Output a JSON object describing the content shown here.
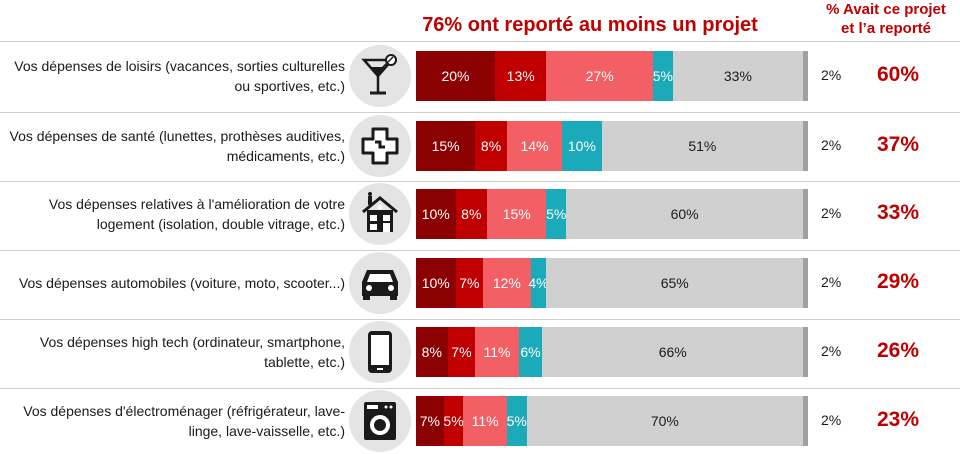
{
  "header": {
    "title": "76% ont reporté au moins un projet",
    "right_label_line1": "% Avait ce projet",
    "right_label_line2": "et l’a reporté"
  },
  "colors": [
    "#8b0000",
    "#c00000",
    "#f26066",
    "#1aaab9",
    "#d0d0d0"
  ],
  "chart_data": {
    "type": "bar",
    "orientation": "horizontal-stacked",
    "title": "76% ont reporté au moins un projet",
    "categories": [
      "Vos dépenses de loisirs (vacances, sorties culturelles ou sportives, etc.)",
      "Vos dépenses de santé (lunettes, prothèses auditives, médicaments, etc.)",
      "Vos dépenses relatives à l'amélioration de votre logement (isolation, double vitrage, etc.)",
      "Vos dépenses automobiles (voiture, moto, scooter...)",
      "Vos dépenses high tech (ordinateur, smartphone, tablette, etc.)",
      "Vos dépenses d'électroménager (réfrigérateur, lave-linge, lave-vaisselle, etc.)"
    ],
    "series": [
      {
        "values": [
          20,
          15,
          10,
          10,
          8,
          7
        ]
      },
      {
        "values": [
          13,
          8,
          8,
          7,
          7,
          5
        ]
      },
      {
        "values": [
          27,
          14,
          15,
          12,
          11,
          11
        ]
      },
      {
        "values": [
          5,
          10,
          5,
          4,
          6,
          5
        ]
      },
      {
        "values": [
          33,
          51,
          60,
          65,
          66,
          70
        ]
      },
      {
        "values": [
          2,
          2,
          2,
          2,
          2,
          2
        ]
      }
    ],
    "reported_share": [
      "60%",
      "37%",
      "33%",
      "29%",
      "26%",
      "23%"
    ]
  },
  "rows": [
    {
      "label_line1": "Vos dépenses de loisirs (vacances, sorties culturelles",
      "label_line2": "ou sportives, etc.)",
      "icon": "cocktail-icon"
    },
    {
      "label_line1": "Vos dépenses de santé (lunettes, prothèses auditives,",
      "label_line2": "médicaments, etc.)",
      "icon": "medical-cross-icon"
    },
    {
      "label_line1": "Vos dépenses relatives à l'amélioration de votre",
      "label_line2": "logement (isolation, double vitrage, etc.)",
      "icon": "house-icon"
    },
    {
      "label_line1": "Vos dépenses automobiles (voiture, moto, scooter...)",
      "label_line2": "",
      "icon": "car-icon"
    },
    {
      "label_line1": "Vos dépenses high tech (ordinateur, smartphone,",
      "label_line2": "tablette, etc.)",
      "icon": "smartphone-icon"
    },
    {
      "label_line1": "Vos dépenses d'électroménager (réfrigérateur, lave-",
      "label_line2": "linge, lave-vaisselle, etc.)",
      "icon": "washing-machine-icon"
    }
  ]
}
